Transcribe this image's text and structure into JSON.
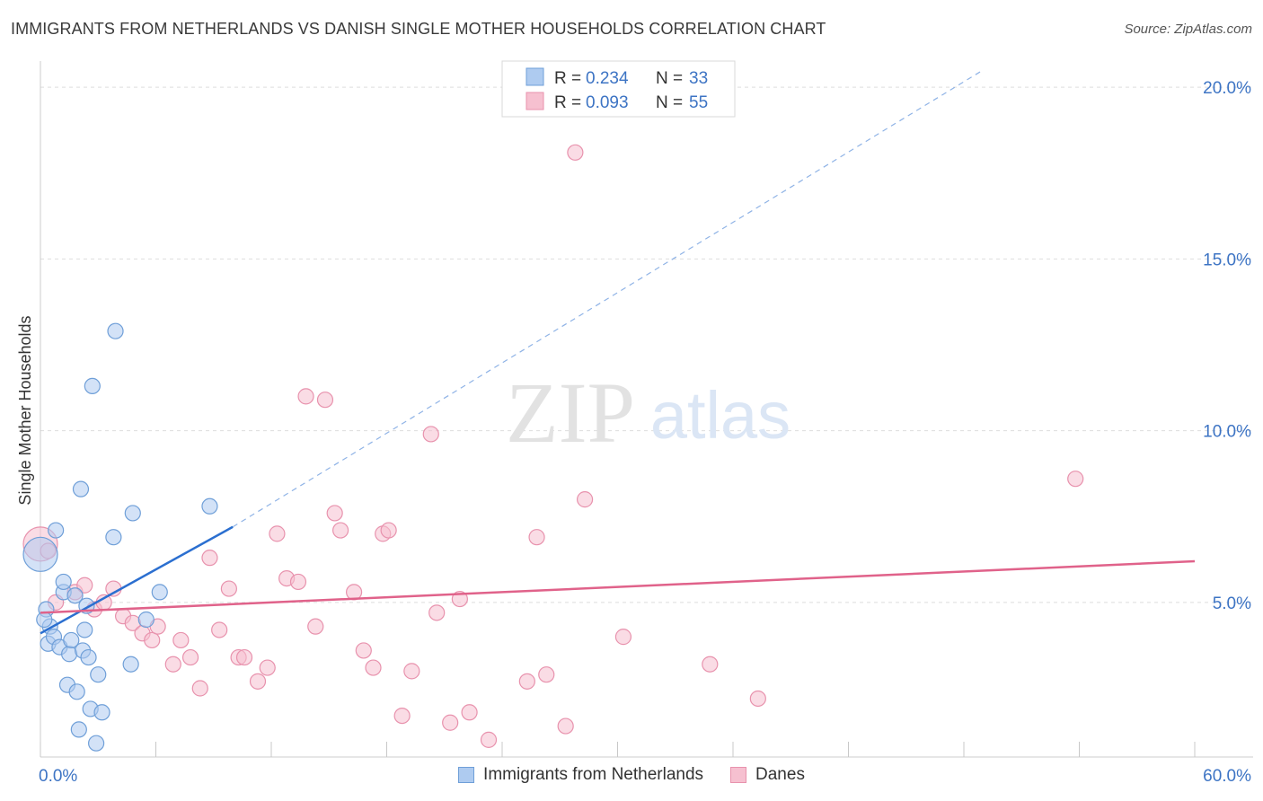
{
  "header": {
    "title": "IMMIGRANTS FROM NETHERLANDS VS DANISH SINGLE MOTHER HOUSEHOLDS CORRELATION CHART",
    "source": "Source: ZipAtlas.com"
  },
  "watermark": {
    "zip": "ZIP",
    "atlas": "atlas"
  },
  "colors": {
    "blue_fill": "#aecbf0",
    "blue_stroke": "#6f9fd8",
    "blue_line": "#2b6fd0",
    "pink_fill": "#f6c0d0",
    "pink_stroke": "#e892ad",
    "pink_line": "#e0628a",
    "axis_label": "#3d74c4",
    "grid": "#dddddd"
  },
  "chart_data": {
    "type": "scatter",
    "xlabel": "",
    "ylabel": "Single Mother Households",
    "xlim": [
      0,
      60
    ],
    "ylim": [
      0.5,
      20.5
    ],
    "x_tick_labels": [
      {
        "value": 0,
        "label": "0.0%"
      },
      {
        "value": 60,
        "label": "60.0%"
      }
    ],
    "y_tick_labels": [
      {
        "value": 5,
        "label": "5.0%"
      },
      {
        "value": 10,
        "label": "10.0%"
      },
      {
        "value": 15,
        "label": "15.0%"
      },
      {
        "value": 20,
        "label": "20.0%"
      }
    ],
    "grid": true,
    "legend_position": "top-center",
    "stats": [
      {
        "r_label": "R =",
        "r_value": "0.234",
        "n_label": "N =",
        "n_value": "33"
      },
      {
        "r_label": "R =",
        "r_value": "0.093",
        "n_label": "N =",
        "n_value": "55"
      }
    ],
    "series": [
      {
        "name": "Immigrants from Netherlands",
        "color": "#aecbf0",
        "trend": {
          "x0": 0,
          "y0": 4.1,
          "x1": 10,
          "y1": 7.2,
          "dash_to_x": 49,
          "dash_to_y": 20.5
        },
        "points": [
          [
            0.0,
            6.4
          ],
          [
            0.3,
            4.8
          ],
          [
            0.4,
            3.8
          ],
          [
            0.5,
            4.3
          ],
          [
            0.7,
            4.0
          ],
          [
            0.8,
            7.1
          ],
          [
            1.0,
            3.7
          ],
          [
            1.2,
            5.3
          ],
          [
            1.2,
            5.6
          ],
          [
            1.4,
            2.6
          ],
          [
            1.5,
            3.5
          ],
          [
            1.6,
            3.9
          ],
          [
            1.8,
            5.2
          ],
          [
            1.9,
            2.4
          ],
          [
            2.0,
            1.3
          ],
          [
            2.1,
            8.3
          ],
          [
            2.2,
            3.6
          ],
          [
            2.3,
            4.2
          ],
          [
            2.4,
            4.9
          ],
          [
            2.5,
            3.4
          ],
          [
            2.6,
            1.9
          ],
          [
            2.7,
            11.3
          ],
          [
            2.9,
            0.9
          ],
          [
            3.0,
            2.9
          ],
          [
            3.2,
            1.8
          ],
          [
            3.8,
            6.9
          ],
          [
            3.9,
            12.9
          ],
          [
            4.7,
            3.2
          ],
          [
            4.8,
            7.6
          ],
          [
            5.5,
            4.5
          ],
          [
            6.2,
            5.3
          ],
          [
            8.8,
            7.8
          ],
          [
            0.2,
            4.5
          ]
        ],
        "sizes": [
          2,
          1,
          1,
          1,
          1,
          1,
          1,
          1,
          1,
          1,
          1,
          1,
          1,
          1,
          1,
          1,
          1,
          1,
          1,
          1,
          1,
          1,
          1,
          1,
          1,
          1,
          1,
          1,
          1,
          1,
          1,
          1,
          1
        ]
      },
      {
        "name": "Danes",
        "color": "#f6c0d0",
        "trend": {
          "x0": 0,
          "y0": 4.7,
          "x1": 60,
          "y1": 6.2
        },
        "points": [
          [
            0.0,
            6.7
          ],
          [
            0.8,
            5.0
          ],
          [
            1.8,
            5.3
          ],
          [
            2.3,
            5.5
          ],
          [
            2.8,
            4.8
          ],
          [
            3.3,
            5.0
          ],
          [
            3.8,
            5.4
          ],
          [
            4.3,
            4.6
          ],
          [
            4.8,
            4.4
          ],
          [
            5.3,
            4.1
          ],
          [
            5.8,
            3.9
          ],
          [
            6.1,
            4.3
          ],
          [
            6.9,
            3.2
          ],
          [
            7.3,
            3.9
          ],
          [
            7.8,
            3.4
          ],
          [
            8.3,
            2.5
          ],
          [
            8.8,
            6.3
          ],
          [
            9.3,
            4.2
          ],
          [
            9.8,
            5.4
          ],
          [
            10.3,
            3.4
          ],
          [
            10.6,
            3.4
          ],
          [
            11.3,
            2.7
          ],
          [
            11.8,
            3.1
          ],
          [
            12.3,
            7.0
          ],
          [
            12.8,
            5.7
          ],
          [
            13.4,
            5.6
          ],
          [
            13.8,
            11.0
          ],
          [
            14.3,
            4.3
          ],
          [
            14.8,
            10.9
          ],
          [
            15.3,
            7.6
          ],
          [
            15.6,
            7.1
          ],
          [
            16.3,
            5.3
          ],
          [
            16.8,
            3.6
          ],
          [
            17.3,
            3.1
          ],
          [
            17.8,
            7.0
          ],
          [
            18.1,
            7.1
          ],
          [
            18.8,
            1.7
          ],
          [
            19.3,
            3.0
          ],
          [
            20.3,
            9.9
          ],
          [
            20.6,
            4.7
          ],
          [
            21.3,
            1.5
          ],
          [
            21.8,
            5.1
          ],
          [
            22.3,
            1.8
          ],
          [
            23.3,
            1.0
          ],
          [
            25.3,
            2.7
          ],
          [
            25.8,
            6.9
          ],
          [
            26.3,
            2.9
          ],
          [
            27.3,
            1.4
          ],
          [
            27.8,
            18.1
          ],
          [
            28.3,
            8.0
          ],
          [
            30.3,
            4.0
          ],
          [
            34.8,
            3.2
          ],
          [
            37.3,
            2.2
          ],
          [
            53.8,
            8.6
          ],
          [
            0.4,
            6.5
          ]
        ],
        "sizes": [
          2,
          1,
          1,
          1,
          1,
          1,
          1,
          1,
          1,
          1,
          1,
          1,
          1,
          1,
          1,
          1,
          1,
          1,
          1,
          1,
          1,
          1,
          1,
          1,
          1,
          1,
          1,
          1,
          1,
          1,
          1,
          1,
          1,
          1,
          1,
          1,
          1,
          1,
          1,
          1,
          1,
          1,
          1,
          1,
          1,
          1,
          1,
          1,
          1,
          1,
          1,
          1,
          1,
          1,
          1
        ]
      }
    ]
  }
}
